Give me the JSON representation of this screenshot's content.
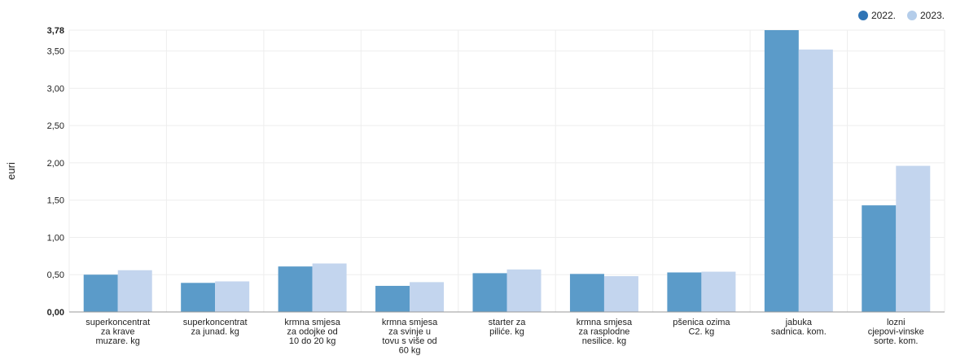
{
  "chart_data": {
    "type": "bar",
    "ylabel": "euri",
    "categories": [
      "superkoncentrat za krave muzare. kg",
      "superkoncentrat za junad. kg",
      "krmna smjesa za odojke od 10 do 20 kg",
      "krmna smjesa za svinje u tovu s više od 60 kg",
      "starter za piliće. kg",
      "krmna smjesa za rasplodne nesilice. kg",
      "pšenica ozima C2. kg",
      "jabuka sadnica. kom.",
      "lozni cjepovi-vinske sorte. kom."
    ],
    "category_lines": [
      [
        "superkoncentrat",
        "za krave",
        "muzare. kg"
      ],
      [
        "superkoncentrat",
        "za junad. kg"
      ],
      [
        "krmna smjesa",
        "za odojke od",
        "10 do 20 kg"
      ],
      [
        "krmna smjesa",
        "za svinje u",
        "tovu s više od",
        "60 kg"
      ],
      [
        "starter za",
        "piliće. kg"
      ],
      [
        "krmna smjesa",
        "za rasplodne",
        "nesilice. kg"
      ],
      [
        "pšenica ozima",
        "C2. kg"
      ],
      [
        "jabuka",
        "sadnica. kom."
      ],
      [
        "lozni",
        "cjepovi-vinske",
        "sorte. kom."
      ]
    ],
    "series": [
      {
        "name": "2022.",
        "color": "#5b9bc9",
        "values": [
          0.5,
          0.39,
          0.61,
          0.35,
          0.52,
          0.51,
          0.53,
          3.78,
          1.43
        ]
      },
      {
        "name": "2023.",
        "color": "#c3d5ee",
        "values": [
          0.56,
          0.41,
          0.65,
          0.4,
          0.57,
          0.48,
          0.54,
          3.52,
          1.96
        ]
      }
    ],
    "ylim": [
      0,
      3.78
    ],
    "yticks": [
      "0,00",
      "0,50",
      "1,00",
      "1,50",
      "2,00",
      "2,50",
      "3,00",
      "3,50",
      "3,78"
    ],
    "ytick_values": [
      0,
      0.5,
      1.0,
      1.5,
      2.0,
      2.5,
      3.0,
      3.5,
      3.78
    ],
    "bold_ticks": [
      "0,00",
      "3,78"
    ],
    "legend_position": "top-right",
    "legend_marker_colors": [
      "#2f74b5",
      "#b4cdea"
    ],
    "grid": true
  }
}
